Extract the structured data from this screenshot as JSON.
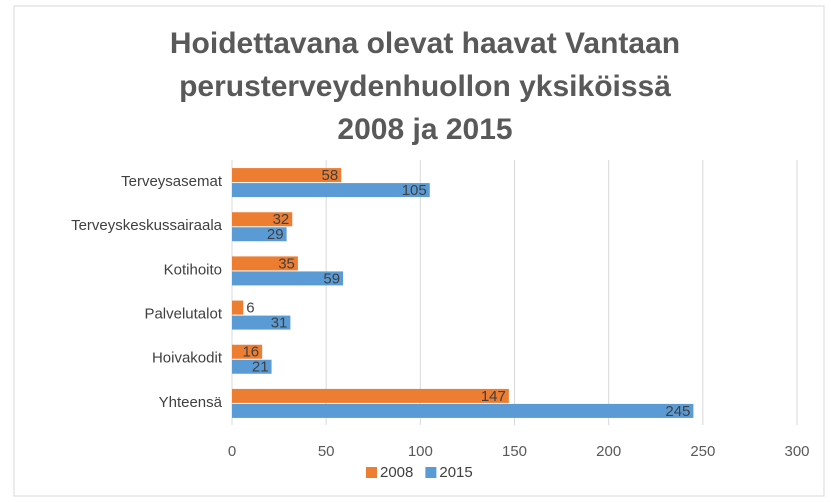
{
  "chart_data": {
    "type": "hbar",
    "title": [
      "Hoidettavana olevat haavat Vantaan",
      "perusterveydenhuollon yksiköissä",
      "2008 ja 2015"
    ],
    "categories": [
      "Terveysasemat",
      "Terveyskeskussairaala",
      "Kotihoito",
      "Palvelutalot",
      "Hoivakodit",
      "Yhteensä"
    ],
    "series": [
      {
        "name": "2008",
        "color": "#ed7d31",
        "values": [
          58,
          32,
          35,
          6,
          16,
          147
        ]
      },
      {
        "name": "2015",
        "color": "#5b9bd5",
        "values": [
          105,
          29,
          59,
          31,
          21,
          245
        ]
      }
    ],
    "xlim": [
      0,
      300
    ],
    "xticks": [
      0,
      50,
      100,
      150,
      200,
      250,
      300
    ],
    "grid": true,
    "legend": "bottom"
  }
}
